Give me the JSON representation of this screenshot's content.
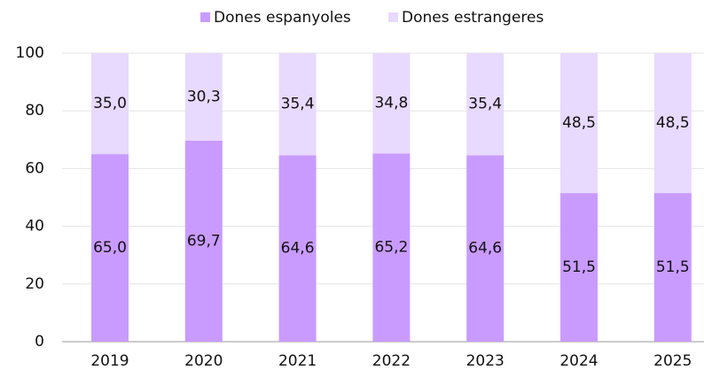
{
  "chart_data": {
    "type": "stacked_bar",
    "categories": [
      "2019",
      "2020",
      "2021",
      "2022",
      "2023",
      "2024",
      "2025"
    ],
    "series": [
      {
        "name": "Dones espanyoles",
        "color": "#c99bff",
        "values": [
          65.0,
          69.7,
          64.6,
          65.2,
          64.6,
          51.5,
          51.5
        ],
        "value_labels": [
          "65,0",
          "69,7",
          "64,6",
          "65,2",
          "64,6",
          "51,5",
          "51,5"
        ]
      },
      {
        "name": "Dones estrangeres",
        "color": "#e8d9ff",
        "values": [
          35.0,
          30.3,
          35.4,
          34.8,
          35.4,
          48.5,
          48.5
        ],
        "value_labels": [
          "35,0",
          "30,3",
          "35,4",
          "34,8",
          "35,4",
          "48,5",
          "48,5"
        ]
      }
    ],
    "ylim": [
      0,
      100
    ],
    "yticks": [
      0,
      20,
      40,
      60,
      80,
      100
    ],
    "grid": true,
    "legend": "top"
  }
}
